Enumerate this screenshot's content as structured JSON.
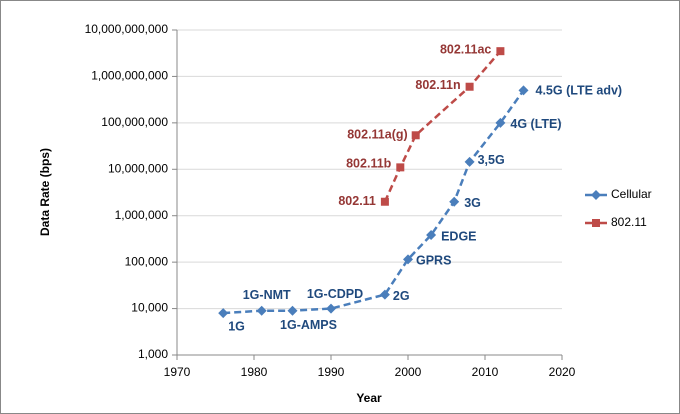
{
  "chart_data": {
    "type": "line",
    "xlabel": "Year",
    "ylabel": "Data Rate (bps)",
    "log_y": true,
    "grid": true,
    "legend": "right",
    "xlim": [
      1970,
      2020
    ],
    "xticks": [
      1970,
      1980,
      1990,
      2000,
      2010,
      2020
    ],
    "ylim": [
      1000,
      10000000000
    ],
    "yticks": [
      {
        "value": 1000,
        "label": "1,000"
      },
      {
        "value": 10000,
        "label": "10,000"
      },
      {
        "value": 100000,
        "label": "100,000"
      },
      {
        "value": 1000000,
        "label": "1,000,000"
      },
      {
        "value": 10000000,
        "label": "10,000,000"
      },
      {
        "value": 100000000,
        "label": "100,000,000"
      },
      {
        "value": 1000000000,
        "label": "1,000,000,000"
      },
      {
        "value": 10000000000,
        "label": "10,000,000,000"
      }
    ],
    "series": [
      {
        "name": "Cellular",
        "color": "#4a7ebb",
        "label_color": "#1f497d",
        "marker": "diamond",
        "x": [
          1976,
          1981,
          1985,
          1990,
          1997,
          2000,
          2003,
          2006,
          2008,
          2012,
          2015
        ],
        "values": [
          8000,
          9000,
          9000,
          10000,
          20000,
          115000,
          384000,
          2000000,
          14400000,
          100000000,
          500000000
        ],
        "point_labels": [
          "1G",
          "1G-NMT",
          "1G-AMPS",
          "1G-CDPD",
          "2G",
          "GPRS",
          "EDGE",
          "3G",
          "3,5G",
          "4G (LTE)",
          "4.5G (LTE adv)"
        ]
      },
      {
        "name": "802.11",
        "color": "#be4b48",
        "label_color": "#953735",
        "marker": "square",
        "x": [
          1997,
          1999,
          2001,
          2008,
          2012
        ],
        "values": [
          2000000,
          11000000,
          54000000,
          600000000,
          3500000000
        ],
        "point_labels": [
          "802.11",
          "802.11b",
          "802.11a(g)",
          "802.11n",
          "802.11ac"
        ]
      }
    ]
  }
}
